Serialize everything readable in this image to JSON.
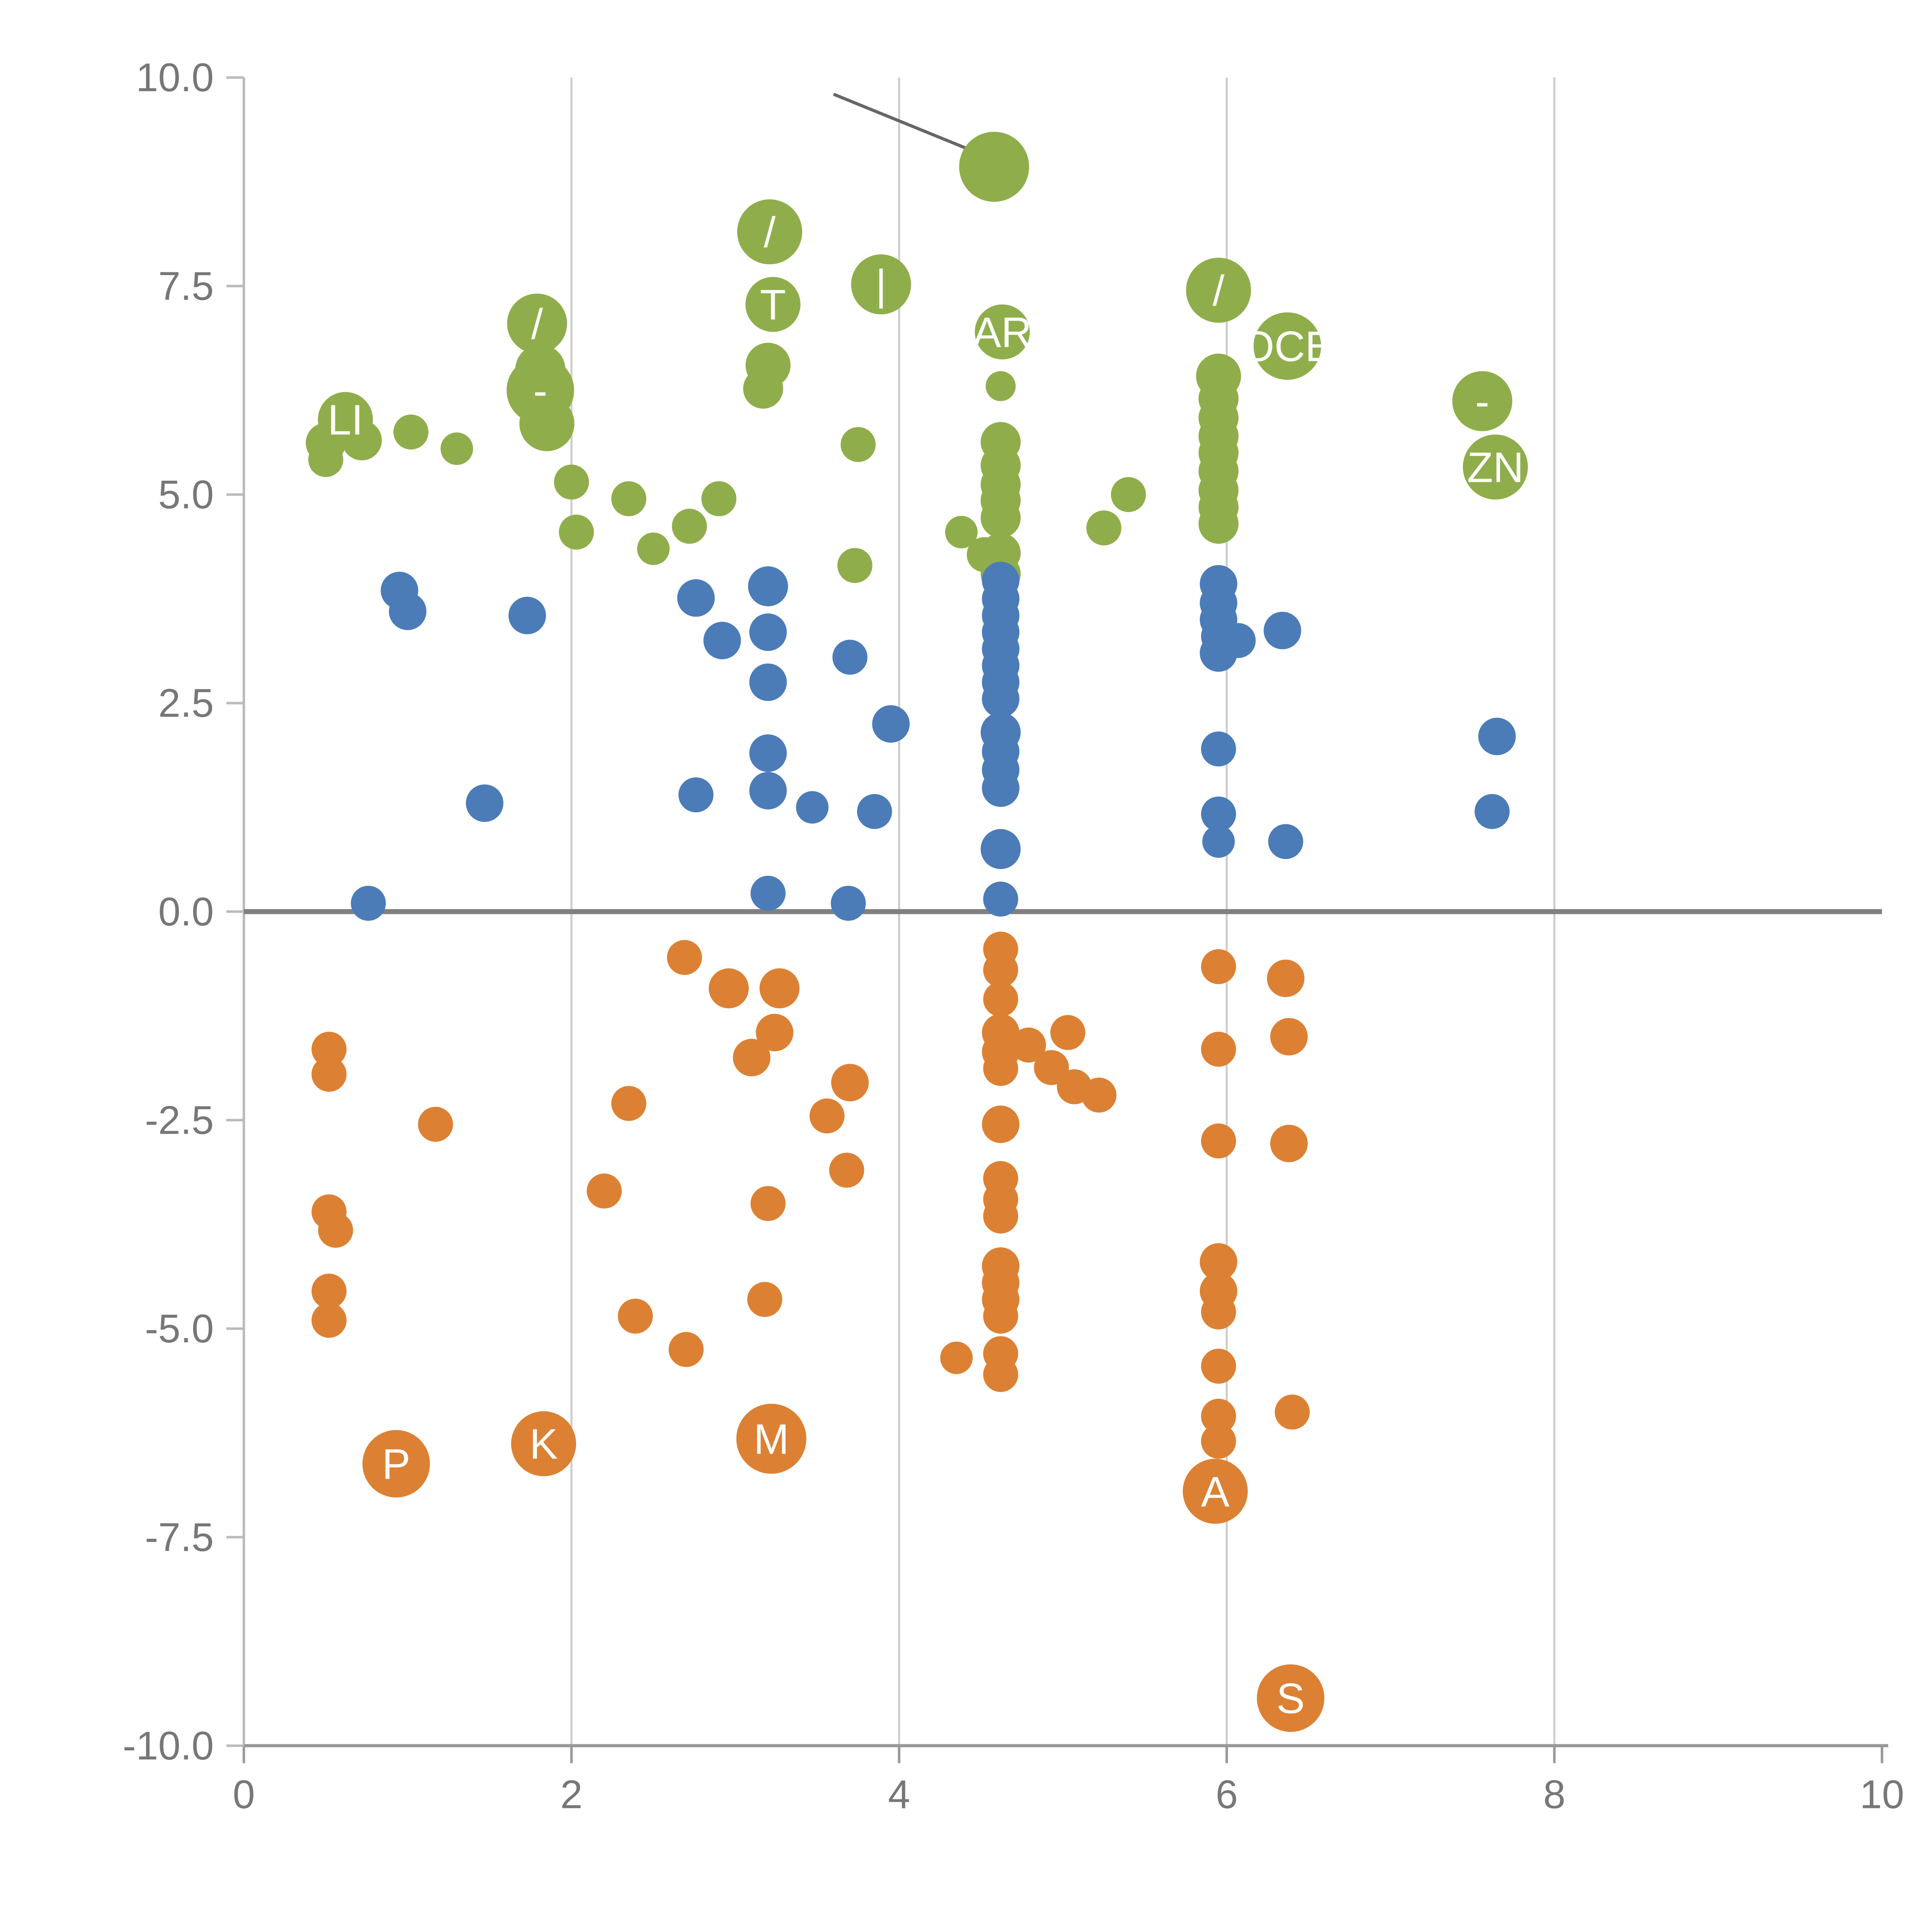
{
  "chart_data": {
    "type": "scatter",
    "title": "",
    "xlabel": "",
    "ylabel": "",
    "xlim": [
      0,
      10
    ],
    "ylim": [
      -10,
      10
    ],
    "grid": {
      "vertical_at": [
        2,
        4,
        6,
        8
      ]
    },
    "zero_line": {
      "y": 0,
      "color": "#808080"
    },
    "legend": "none",
    "colors": {
      "green": "#8fae4b",
      "blue": "#4b7cb8",
      "orange": "#dc8133",
      "gridline": "#cccccc",
      "axis": "#999999",
      "axis_left": "#bbbbbb",
      "tick_label": "#777777",
      "point_label": "#ffffff",
      "annotation": "#666666"
    },
    "x_ticks": [
      {
        "v": 0,
        "label": "0"
      },
      {
        "v": 2,
        "label": "2"
      },
      {
        "v": 4,
        "label": "4"
      },
      {
        "v": 6,
        "label": "6"
      },
      {
        "v": 8,
        "label": "8"
      },
      {
        "v": 10,
        "label": "10"
      }
    ],
    "y_ticks": [
      {
        "v": 10,
        "label": "10.0"
      },
      {
        "v": 7.5,
        "label": "7.5"
      },
      {
        "v": 5,
        "label": "5.0"
      },
      {
        "v": 2.5,
        "label": "2.5"
      },
      {
        "v": 0,
        "label": "0.0"
      },
      {
        "v": -2.5,
        "label": "-2.5"
      },
      {
        "v": -5,
        "label": "-5.0"
      },
      {
        "v": -7.5,
        "label": "-7.5"
      },
      {
        "v": -10,
        "label": "-10.0"
      }
    ],
    "annotation_line": {
      "x1": 3.6,
      "y1": 9.8,
      "x2": 4.45,
      "y2": 9.12
    },
    "series": [
      {
        "name": "green",
        "color": "#8fae4b",
        "points": [
          {
            "x": 4.58,
            "y": 8.93,
            "r": 28
          },
          {
            "x": 3.21,
            "y": 8.15,
            "r": 26,
            "l": "/"
          },
          {
            "x": 3.89,
            "y": 7.52,
            "r": 24,
            "l": "|"
          },
          {
            "x": 3.23,
            "y": 7.28,
            "r": 22,
            "l": "T"
          },
          {
            "x": 4.63,
            "y": 6.95,
            "r": 22,
            "l": "AR"
          },
          {
            "x": 5.95,
            "y": 7.45,
            "r": 26,
            "l": "/"
          },
          {
            "x": 6.37,
            "y": 6.78,
            "r": 27,
            "l": "OCE"
          },
          {
            "x": 7.56,
            "y": 6.12,
            "r": 24,
            "l": "-"
          },
          {
            "x": 7.64,
            "y": 5.33,
            "r": 26,
            "l": "ZN"
          },
          {
            "x": 1.79,
            "y": 7.05,
            "r": 24,
            "l": "/"
          },
          {
            "x": 1.81,
            "y": 6.5,
            "r": 20
          },
          {
            "x": 1.81,
            "y": 6.25,
            "r": 27,
            "l": "-"
          },
          {
            "x": 1.85,
            "y": 5.85,
            "r": 22
          },
          {
            "x": 0.62,
            "y": 5.9,
            "r": 22,
            "l": "LI"
          },
          {
            "x": 0.5,
            "y": 5.62,
            "r": 16
          },
          {
            "x": 0.5,
            "y": 5.42,
            "r": 14
          },
          {
            "x": 0.72,
            "y": 5.65,
            "r": 16
          },
          {
            "x": 1.02,
            "y": 5.75,
            "r": 14
          },
          {
            "x": 1.3,
            "y": 5.55,
            "r": 13
          },
          {
            "x": 2.0,
            "y": 5.15,
            "r": 14
          },
          {
            "x": 2.03,
            "y": 4.55,
            "r": 14
          },
          {
            "x": 2.35,
            "y": 4.95,
            "r": 14
          },
          {
            "x": 2.5,
            "y": 4.35,
            "r": 13
          },
          {
            "x": 2.72,
            "y": 4.62,
            "r": 14
          },
          {
            "x": 2.9,
            "y": 4.95,
            "r": 14
          },
          {
            "x": 3.2,
            "y": 6.55,
            "r": 18
          },
          {
            "x": 3.17,
            "y": 6.27,
            "r": 16
          },
          {
            "x": 3.75,
            "y": 5.6,
            "r": 14
          },
          {
            "x": 3.73,
            "y": 4.15,
            "r": 14
          },
          {
            "x": 4.38,
            "y": 4.55,
            "r": 13
          },
          {
            "x": 4.52,
            "y": 4.28,
            "r": 14
          },
          {
            "x": 4.62,
            "y": 6.3,
            "r": 12
          },
          {
            "x": 4.62,
            "y": 5.63,
            "r": 16
          },
          {
            "x": 4.62,
            "y": 5.35,
            "r": 16
          },
          {
            "x": 4.62,
            "y": 5.12,
            "r": 16
          },
          {
            "x": 4.62,
            "y": 4.93,
            "r": 16
          },
          {
            "x": 4.62,
            "y": 4.72,
            "r": 16
          },
          {
            "x": 4.62,
            "y": 4.3,
            "r": 16
          },
          {
            "x": 4.62,
            "y": 4.05,
            "r": 16
          },
          {
            "x": 5.25,
            "y": 4.6,
            "r": 14
          },
          {
            "x": 5.4,
            "y": 5.0,
            "r": 14
          },
          {
            "x": 5.95,
            "y": 6.42,
            "r": 18
          },
          {
            "x": 5.95,
            "y": 6.15,
            "r": 16
          },
          {
            "x": 5.95,
            "y": 5.92,
            "r": 16
          },
          {
            "x": 5.95,
            "y": 5.7,
            "r": 16
          },
          {
            "x": 5.95,
            "y": 5.5,
            "r": 16
          },
          {
            "x": 5.95,
            "y": 5.28,
            "r": 16
          },
          {
            "x": 5.95,
            "y": 5.05,
            "r": 16
          },
          {
            "x": 5.95,
            "y": 4.85,
            "r": 16
          },
          {
            "x": 5.95,
            "y": 4.65,
            "r": 16
          }
        ]
      },
      {
        "name": "blue",
        "color": "#4b7cb8",
        "points": [
          {
            "x": 0.95,
            "y": 3.85,
            "r": 15
          },
          {
            "x": 1.0,
            "y": 3.6,
            "r": 15
          },
          {
            "x": 1.73,
            "y": 3.55,
            "r": 15
          },
          {
            "x": 1.47,
            "y": 1.3,
            "r": 15
          },
          {
            "x": 0.76,
            "y": 0.1,
            "r": 14
          },
          {
            "x": 2.76,
            "y": 3.76,
            "r": 15
          },
          {
            "x": 2.92,
            "y": 3.25,
            "r": 15
          },
          {
            "x": 3.2,
            "y": 3.9,
            "r": 16
          },
          {
            "x": 3.2,
            "y": 3.35,
            "r": 15
          },
          {
            "x": 3.2,
            "y": 2.75,
            "r": 15
          },
          {
            "x": 3.2,
            "y": 1.9,
            "r": 15
          },
          {
            "x": 3.2,
            "y": 1.45,
            "r": 15
          },
          {
            "x": 3.2,
            "y": 0.22,
            "r": 14
          },
          {
            "x": 2.76,
            "y": 1.4,
            "r": 14
          },
          {
            "x": 3.47,
            "y": 1.25,
            "r": 13
          },
          {
            "x": 3.7,
            "y": 3.05,
            "r": 14
          },
          {
            "x": 3.85,
            "y": 1.2,
            "r": 14
          },
          {
            "x": 3.95,
            "y": 2.25,
            "r": 15
          },
          {
            "x": 3.69,
            "y": 0.1,
            "r": 14
          },
          {
            "x": 4.62,
            "y": 3.97,
            "r": 15
          },
          {
            "x": 4.62,
            "y": 3.75,
            "r": 15
          },
          {
            "x": 4.62,
            "y": 3.55,
            "r": 15
          },
          {
            "x": 4.62,
            "y": 3.35,
            "r": 15
          },
          {
            "x": 4.62,
            "y": 3.15,
            "r": 15
          },
          {
            "x": 4.62,
            "y": 2.95,
            "r": 15
          },
          {
            "x": 4.62,
            "y": 2.75,
            "r": 15
          },
          {
            "x": 4.62,
            "y": 2.55,
            "r": 15
          },
          {
            "x": 4.62,
            "y": 2.15,
            "r": 16
          },
          {
            "x": 4.62,
            "y": 1.92,
            "r": 15
          },
          {
            "x": 4.62,
            "y": 1.7,
            "r": 15
          },
          {
            "x": 4.62,
            "y": 1.48,
            "r": 15
          },
          {
            "x": 4.62,
            "y": 0.75,
            "r": 16
          },
          {
            "x": 4.62,
            "y": 0.15,
            "r": 14
          },
          {
            "x": 5.95,
            "y": 3.93,
            "r": 15
          },
          {
            "x": 5.95,
            "y": 3.7,
            "r": 15
          },
          {
            "x": 5.95,
            "y": 3.5,
            "r": 15
          },
          {
            "x": 5.95,
            "y": 3.3,
            "r": 14
          },
          {
            "x": 5.95,
            "y": 3.1,
            "r": 15
          },
          {
            "x": 5.95,
            "y": 1.95,
            "r": 14
          },
          {
            "x": 5.95,
            "y": 1.17,
            "r": 14
          },
          {
            "x": 5.95,
            "y": 0.84,
            "r": 13
          },
          {
            "x": 6.07,
            "y": 3.25,
            "r": 14
          },
          {
            "x": 6.34,
            "y": 3.37,
            "r": 15
          },
          {
            "x": 6.36,
            "y": 0.84,
            "r": 14
          },
          {
            "x": 7.65,
            "y": 2.1,
            "r": 15
          },
          {
            "x": 7.62,
            "y": 1.2,
            "r": 14
          }
        ]
      },
      {
        "name": "orange",
        "color": "#dc8133",
        "points": [
          {
            "x": 0.52,
            "y": -1.65,
            "r": 14
          },
          {
            "x": 0.52,
            "y": -1.95,
            "r": 14
          },
          {
            "x": 1.17,
            "y": -2.55,
            "r": 14
          },
          {
            "x": 0.52,
            "y": -3.6,
            "r": 14
          },
          {
            "x": 0.56,
            "y": -3.82,
            "r": 14
          },
          {
            "x": 0.52,
            "y": -4.55,
            "r": 14
          },
          {
            "x": 0.52,
            "y": -4.9,
            "r": 14
          },
          {
            "x": 0.93,
            "y": -6.62,
            "r": 27,
            "l": "P"
          },
          {
            "x": 1.83,
            "y": -6.38,
            "r": 26,
            "l": "K"
          },
          {
            "x": 2.2,
            "y": -3.35,
            "r": 14
          },
          {
            "x": 2.35,
            "y": -2.3,
            "r": 14
          },
          {
            "x": 2.39,
            "y": -4.85,
            "r": 14
          },
          {
            "x": 2.69,
            "y": -0.55,
            "r": 14
          },
          {
            "x": 2.7,
            "y": -5.25,
            "r": 14
          },
          {
            "x": 2.96,
            "y": -0.92,
            "r": 16
          },
          {
            "x": 3.1,
            "y": -1.75,
            "r": 15
          },
          {
            "x": 3.24,
            "y": -1.45,
            "r": 15
          },
          {
            "x": 3.27,
            "y": -0.92,
            "r": 16
          },
          {
            "x": 3.2,
            "y": -3.5,
            "r": 14
          },
          {
            "x": 3.18,
            "y": -4.65,
            "r": 14
          },
          {
            "x": 3.22,
            "y": -6.32,
            "r": 28,
            "l": "M"
          },
          {
            "x": 3.56,
            "y": -2.45,
            "r": 14
          },
          {
            "x": 3.7,
            "y": -2.05,
            "r": 15
          },
          {
            "x": 3.68,
            "y": -3.1,
            "r": 14
          },
          {
            "x": 4.35,
            "y": -5.35,
            "r": 13
          },
          {
            "x": 4.62,
            "y": -0.45,
            "r": 14
          },
          {
            "x": 4.62,
            "y": -0.7,
            "r": 14
          },
          {
            "x": 4.62,
            "y": -1.05,
            "r": 14
          },
          {
            "x": 4.62,
            "y": -1.45,
            "r": 15
          },
          {
            "x": 4.62,
            "y": -1.68,
            "r": 15
          },
          {
            "x": 4.62,
            "y": -1.88,
            "r": 14
          },
          {
            "x": 4.62,
            "y": -2.55,
            "r": 15
          },
          {
            "x": 4.62,
            "y": -3.2,
            "r": 14
          },
          {
            "x": 4.62,
            "y": -3.45,
            "r": 14
          },
          {
            "x": 4.62,
            "y": -3.65,
            "r": 14
          },
          {
            "x": 4.62,
            "y": -4.25,
            "r": 15
          },
          {
            "x": 4.62,
            "y": -4.45,
            "r": 15
          },
          {
            "x": 4.62,
            "y": -4.65,
            "r": 15
          },
          {
            "x": 4.62,
            "y": -4.85,
            "r": 14
          },
          {
            "x": 4.62,
            "y": -5.3,
            "r": 14
          },
          {
            "x": 4.62,
            "y": -5.55,
            "r": 14
          },
          {
            "x": 4.79,
            "y": -1.6,
            "r": 14
          },
          {
            "x": 4.93,
            "y": -1.87,
            "r": 14
          },
          {
            "x": 5.03,
            "y": -1.45,
            "r": 14
          },
          {
            "x": 5.07,
            "y": -2.1,
            "r": 14
          },
          {
            "x": 5.22,
            "y": -2.2,
            "r": 14
          },
          {
            "x": 5.95,
            "y": -0.66,
            "r": 14
          },
          {
            "x": 5.95,
            "y": -1.65,
            "r": 14
          },
          {
            "x": 5.95,
            "y": -2.75,
            "r": 14
          },
          {
            "x": 5.95,
            "y": -4.2,
            "r": 15
          },
          {
            "x": 5.95,
            "y": -4.55,
            "r": 15
          },
          {
            "x": 5.95,
            "y": -4.8,
            "r": 14
          },
          {
            "x": 5.95,
            "y": -5.45,
            "r": 14
          },
          {
            "x": 5.95,
            "y": -6.05,
            "r": 14
          },
          {
            "x": 5.95,
            "y": -6.35,
            "r": 14
          },
          {
            "x": 5.93,
            "y": -6.95,
            "r": 26,
            "l": "A"
          },
          {
            "x": 6.36,
            "y": -0.8,
            "r": 15
          },
          {
            "x": 6.38,
            "y": -1.5,
            "r": 15
          },
          {
            "x": 6.38,
            "y": -2.78,
            "r": 15
          },
          {
            "x": 6.4,
            "y": -6.0,
            "r": 14
          },
          {
            "x": 6.39,
            "y": -9.43,
            "r": 27,
            "l": "S"
          }
        ]
      }
    ]
  }
}
